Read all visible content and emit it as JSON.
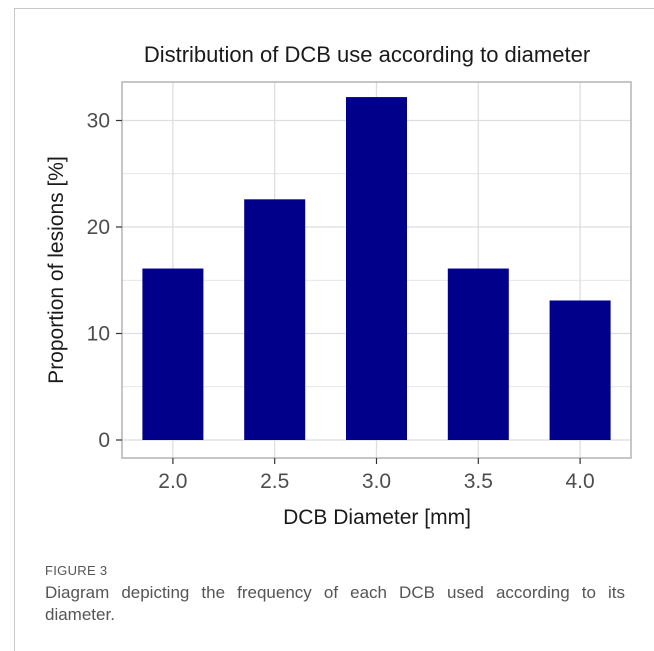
{
  "figure": {
    "label": "FIGURE 3",
    "caption": "Diagram depicting the frequency of each DCB used according to its diameter."
  },
  "chart_data": {
    "type": "bar",
    "title": "Distribution of DCB use according to diameter",
    "xlabel": "DCB Diameter [mm]",
    "ylabel": "Proportion of lesions [%]",
    "categories": [
      "2.0",
      "2.5",
      "3.0",
      "3.5",
      "4.0"
    ],
    "values": [
      16.1,
      22.6,
      32.2,
      16.1,
      13.1
    ],
    "ylim": [
      0,
      33.5
    ],
    "yticks": [
      "0",
      "10",
      "20",
      "30"
    ],
    "grid": true,
    "legend": "none",
    "colors": {
      "bar": "#00008b",
      "grid": "#dedede",
      "panel_border": "#b3b3b3",
      "text": "#1a1a1a"
    }
  }
}
